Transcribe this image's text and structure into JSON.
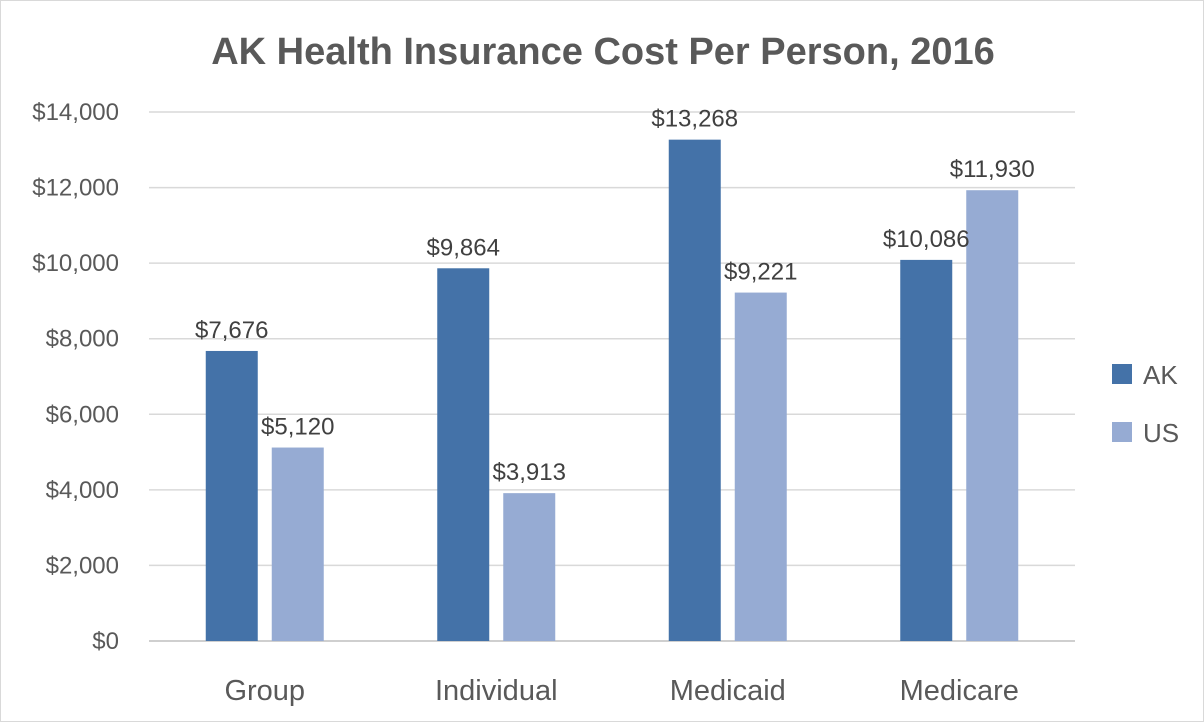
{
  "chart_data": {
    "type": "bar",
    "title": "AK Health Insurance Cost Per Person, 2016",
    "categories": [
      "Group",
      "Individual",
      "Medicaid",
      "Medicare"
    ],
    "series": [
      {
        "name": "AK",
        "values": [
          7676,
          9864,
          13268,
          10086
        ],
        "labels": [
          "$7,676",
          "$9,864",
          "$13,268",
          "$10,086"
        ],
        "color": "#4472a8"
      },
      {
        "name": "US",
        "values": [
          5120,
          3913,
          9221,
          11930
        ],
        "labels": [
          "$5,120",
          "$3,913",
          "$9,221",
          "$11,930"
        ],
        "color": "#96abd3"
      }
    ],
    "yticks": [
      0,
      2000,
      4000,
      6000,
      8000,
      10000,
      12000,
      14000
    ],
    "ytick_labels": [
      "$0",
      "$2,000",
      "$4,000",
      "$6,000",
      "$8,000",
      "$10,000",
      "$12,000",
      "$14,000"
    ],
    "ylim": [
      0,
      14000
    ],
    "grid": true,
    "legend": "right"
  }
}
